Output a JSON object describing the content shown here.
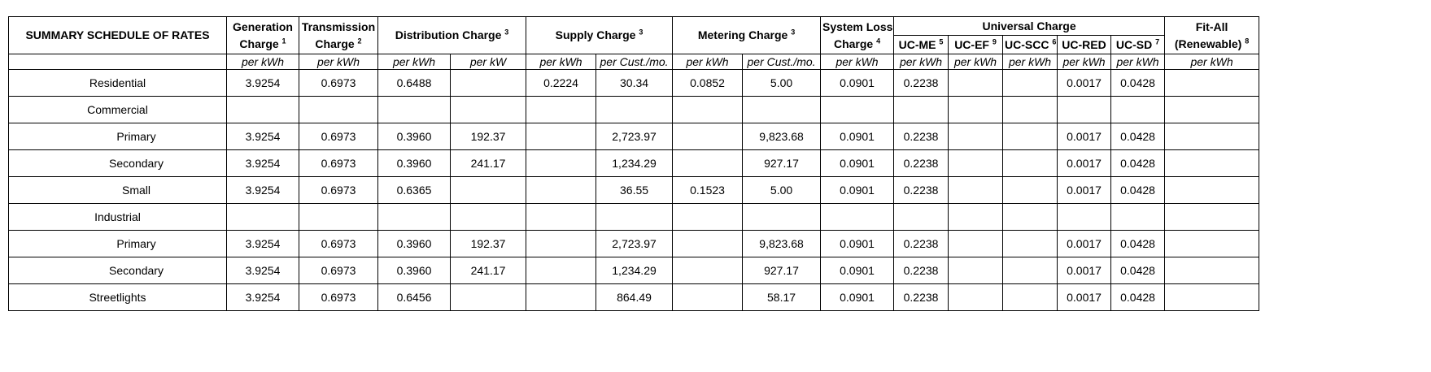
{
  "header": {
    "title": "SUMMARY SCHEDULE OF RATES",
    "generation": {
      "label": "Generation",
      "label2": "Charge",
      "sup": "1"
    },
    "transmission": {
      "label": "Transmission",
      "label2": "Charge",
      "sup": "2"
    },
    "distribution": {
      "label": "Distribution Charge",
      "sup": "3"
    },
    "supply": {
      "label": "Supply Charge",
      "sup": "3"
    },
    "metering": {
      "label": "Metering Charge",
      "sup": "3"
    },
    "system_loss": {
      "label": "System Loss",
      "label2": "Charge",
      "sup": "4"
    },
    "universal": {
      "label": "Universal Charge"
    },
    "uc_me": {
      "label": "UC-ME",
      "sup": "5"
    },
    "uc_ef": {
      "label": "UC-EF",
      "sup": "9"
    },
    "uc_scc": {
      "label": "UC-SCC",
      "sup": "6"
    },
    "uc_red": {
      "label": "UC-RED"
    },
    "uc_sd": {
      "label": "UC-SD",
      "sup": "7"
    },
    "fit_all": {
      "label": "Fit-All",
      "label2": "(Renewable)",
      "sup": "8"
    }
  },
  "units": [
    "per kWh",
    "per kWh",
    "per kWh",
    "per kW",
    "per kWh",
    "per Cust./mo.",
    "per kWh",
    "per Cust./mo.",
    "per kWh",
    "per kWh",
    "per kWh",
    "per kWh",
    "per kWh",
    "per kWh",
    "per kWh"
  ],
  "rows": [
    {
      "label": "Residential",
      "group": true,
      "cells": [
        "3.9254",
        "0.6973",
        "0.6488",
        "",
        "0.2224",
        "30.34",
        "0.0852",
        "5.00",
        "0.0901",
        "0.2238",
        "",
        "",
        "0.0017",
        "0.0428",
        ""
      ]
    },
    {
      "label": "Commercial",
      "group": true,
      "cells": [
        "",
        "",
        "",
        "",
        "",
        "",
        "",
        "",
        "",
        "",
        "",
        "",
        "",
        "",
        ""
      ]
    },
    {
      "label": "Primary",
      "group": false,
      "cells": [
        "3.9254",
        "0.6973",
        "0.3960",
        "192.37",
        "",
        "2,723.97",
        "",
        "9,823.68",
        "0.0901",
        "0.2238",
        "",
        "",
        "0.0017",
        "0.0428",
        ""
      ]
    },
    {
      "label": "Secondary",
      "group": false,
      "cells": [
        "3.9254",
        "0.6973",
        "0.3960",
        "241.17",
        "",
        "1,234.29",
        "",
        "927.17",
        "0.0901",
        "0.2238",
        "",
        "",
        "0.0017",
        "0.0428",
        ""
      ]
    },
    {
      "label": "Small",
      "group": false,
      "cells": [
        "3.9254",
        "0.6973",
        "0.6365",
        "",
        "",
        "36.55",
        "0.1523",
        "5.00",
        "0.0901",
        "0.2238",
        "",
        "",
        "0.0017",
        "0.0428",
        ""
      ]
    },
    {
      "label": "Industrial",
      "group": true,
      "cells": [
        "",
        "",
        "",
        "",
        "",
        "",
        "",
        "",
        "",
        "",
        "",
        "",
        "",
        "",
        ""
      ]
    },
    {
      "label": "Primary",
      "group": false,
      "cells": [
        "3.9254",
        "0.6973",
        "0.3960",
        "192.37",
        "",
        "2,723.97",
        "",
        "9,823.68",
        "0.0901",
        "0.2238",
        "",
        "",
        "0.0017",
        "0.0428",
        ""
      ]
    },
    {
      "label": "Secondary",
      "group": false,
      "cells": [
        "3.9254",
        "0.6973",
        "0.3960",
        "241.17",
        "",
        "1,234.29",
        "",
        "927.17",
        "0.0901",
        "0.2238",
        "",
        "",
        "0.0017",
        "0.0428",
        ""
      ]
    },
    {
      "label": "Streetlights",
      "group": true,
      "cells": [
        "3.9254",
        "0.6973",
        "0.6456",
        "",
        "",
        "864.49",
        "",
        "58.17",
        "0.0901",
        "0.2238",
        "",
        "",
        "0.0017",
        "0.0428",
        ""
      ]
    }
  ]
}
